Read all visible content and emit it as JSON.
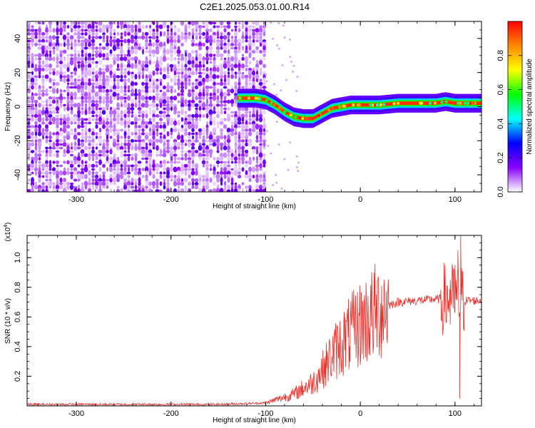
{
  "title": "C2E1.2025.053.01.00.R14",
  "chart_data": [
    {
      "type": "heatmap",
      "xlabel": "Height of straight line (km)",
      "ylabel": "Frequency (Hz)",
      "xlim": [
        -352,
        128
      ],
      "ylim": [
        -50,
        50
      ],
      "xticks": [
        -300,
        -200,
        -100,
        0,
        100
      ],
      "yticks": [
        -40,
        -20,
        0,
        20,
        40
      ],
      "colorbar": {
        "label": "Normalized spectral amplitude",
        "range": [
          0,
          1
        ],
        "ticks": [
          0.0,
          0.2,
          0.4,
          0.6,
          0.8
        ],
        "colors": [
          "#ffffff",
          "#8800ff",
          "#0000ff",
          "#00ffff",
          "#00ff00",
          "#ffff00",
          "#ff8800",
          "#ff0000"
        ]
      },
      "ridge": {
        "x": [
          -130,
          -110,
          -100,
          -90,
          -80,
          -70,
          -60,
          -50,
          -40,
          -30,
          -20,
          -10,
          0,
          20,
          40,
          60,
          80,
          90,
          100,
          128
        ],
        "y": [
          5,
          5,
          4,
          1,
          -3,
          -6,
          -7,
          -7,
          -4,
          -1,
          0,
          1,
          1,
          1,
          2,
          2,
          2,
          3,
          2,
          2
        ]
      },
      "noise_x_range": [
        -352,
        -100
      ]
    },
    {
      "type": "line",
      "xlabel": "Height of straight line (km)",
      "ylabel": "SNR (10 * v/v)",
      "yscale_label": "(x10",
      "yscale_exponent": "4",
      "xlim": [
        -352,
        128
      ],
      "ylim": [
        0,
        1.15
      ],
      "xticks": [
        -300,
        -200,
        -100,
        0,
        100
      ],
      "yticks": [
        0.2,
        0.4,
        0.6,
        0.8,
        1.0
      ],
      "series_color": "#e8302a",
      "envelope": {
        "x": [
          -352,
          -150,
          -100,
          -90,
          -70,
          -50,
          -40,
          -30,
          -20,
          -10,
          0,
          10,
          20,
          30,
          40,
          60,
          80,
          90,
          100,
          105,
          110,
          128
        ],
        "y": [
          0.01,
          0.01,
          0.02,
          0.04,
          0.08,
          0.16,
          0.24,
          0.34,
          0.42,
          0.49,
          0.55,
          0.6,
          0.65,
          0.68,
          0.7,
          0.71,
          0.72,
          0.72,
          0.72,
          0.71,
          0.71,
          0.71
        ]
      },
      "spikes": [
        {
          "x": 95,
          "y": 0.85
        },
        {
          "x": 100,
          "y": 0.95
        },
        {
          "x": 103,
          "y": 1.05
        },
        {
          "x": 106,
          "y": 1.15
        },
        {
          "x": 105,
          "y": 0.05
        }
      ]
    }
  ]
}
